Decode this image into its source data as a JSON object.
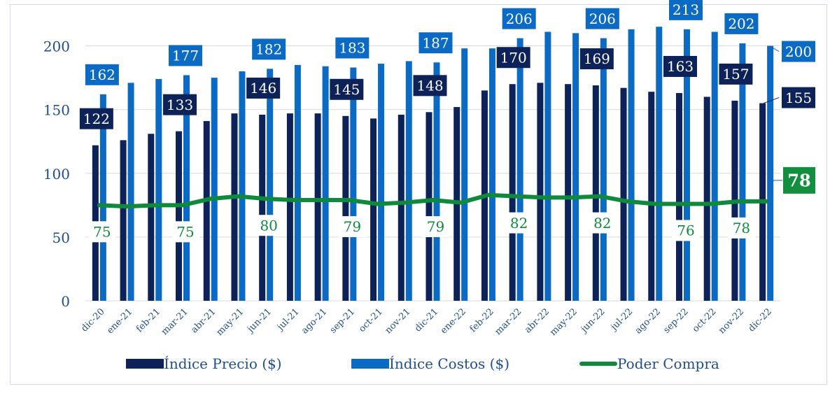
{
  "chart_data": {
    "type": "bar",
    "categories": [
      "dic-20",
      "ene-21",
      "feb-21",
      "mar-21",
      "abr-21",
      "may-21",
      "jun-21",
      "jul-21",
      "ago-21",
      "sep-21",
      "oct-21",
      "nov-21",
      "dic-21",
      "ene-22",
      "feb-22",
      "mar-22",
      "abr-22",
      "may-22",
      "jun-22",
      "jul-22",
      "ago-22",
      "sep-22",
      "oct-22",
      "nov-22",
      "dic-22"
    ],
    "series": [
      {
        "name": "Índice Precio ($)",
        "kind": "bar",
        "color": "#0d2259",
        "values": [
          122,
          126,
          131,
          133,
          141,
          147,
          146,
          147,
          147,
          145,
          143,
          146,
          148,
          152,
          165,
          170,
          171,
          170,
          169,
          167,
          164,
          163,
          160,
          157,
          155
        ]
      },
      {
        "name": "Índice Costos ($)",
        "kind": "bar",
        "color": "#0a6ac4",
        "values": [
          162,
          171,
          174,
          177,
          175,
          180,
          182,
          185,
          184,
          183,
          186,
          188,
          187,
          198,
          198,
          206,
          211,
          210,
          206,
          213,
          215,
          213,
          211,
          202,
          200
        ]
      },
      {
        "name": "Poder Compra",
        "kind": "line",
        "color": "#0f8a3c",
        "values": [
          75,
          74,
          75,
          75,
          80,
          82,
          80,
          79,
          79,
          79,
          76,
          77,
          79,
          77,
          83,
          82,
          81,
          81,
          82,
          78,
          76,
          76,
          76,
          78,
          78
        ]
      }
    ],
    "ylim": [
      0,
      225
    ],
    "yticks": [
      0,
      50,
      100,
      150,
      200
    ],
    "grid": true,
    "legend": "bottom",
    "title": "",
    "xlabel": "",
    "ylabel": ""
  }
}
